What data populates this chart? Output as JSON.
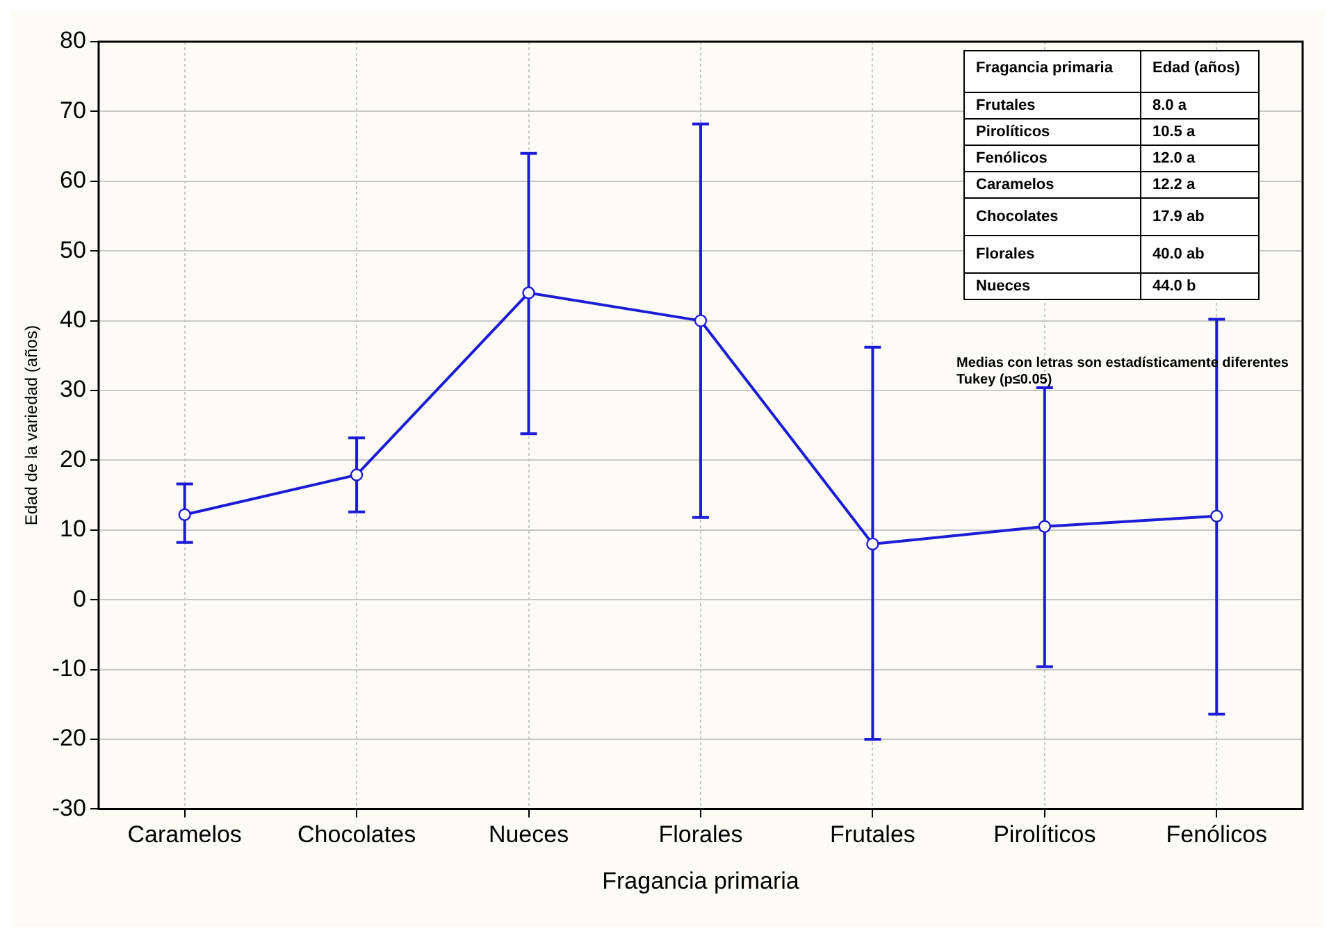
{
  "chart_data": {
    "type": "line",
    "xlabel": "Fragancia primaria",
    "ylabel": "Edad de la variedad (años)",
    "categories": [
      "Caramelos",
      "Chocolates",
      "Nueces",
      "Florales",
      "Frutales",
      "Pirolíticos",
      "Fenólicos"
    ],
    "series": [
      {
        "color": "#1c1cd6",
        "values": [
          12.2,
          17.9,
          44.0,
          40.0,
          8.0,
          10.5,
          12.0
        ],
        "errors": [
          [
            8.2,
            16.6
          ],
          [
            12.6,
            23.2
          ],
          [
            23.8,
            64.0
          ],
          [
            11.8,
            68.2
          ],
          [
            -20.0,
            36.2
          ],
          [
            -9.6,
            30.4
          ],
          [
            -16.4,
            40.2
          ]
        ]
      }
    ],
    "ylim": [
      -30,
      80
    ],
    "yticks": [
      -30,
      -20,
      -10,
      0,
      10,
      20,
      30,
      40,
      50,
      60,
      70,
      80
    ],
    "grid": true,
    "marker": "circle",
    "line_style": "solid",
    "annotations": [
      "Fragancia primaria",
      "Edad (años)",
      "Frutales",
      "8.0 a",
      "Pirolíticos",
      "10.5 a",
      "Fenólicos",
      "12.0 a",
      "Caramelos",
      "12.2 a",
      "Chocolates",
      "17.9 ab",
      "Florales",
      "40.0 ab",
      "Nueces",
      "44.0 b",
      "Medias con letras son estadísticamente diferentes",
      "Tukey (p≤0.05)"
    ]
  }
}
